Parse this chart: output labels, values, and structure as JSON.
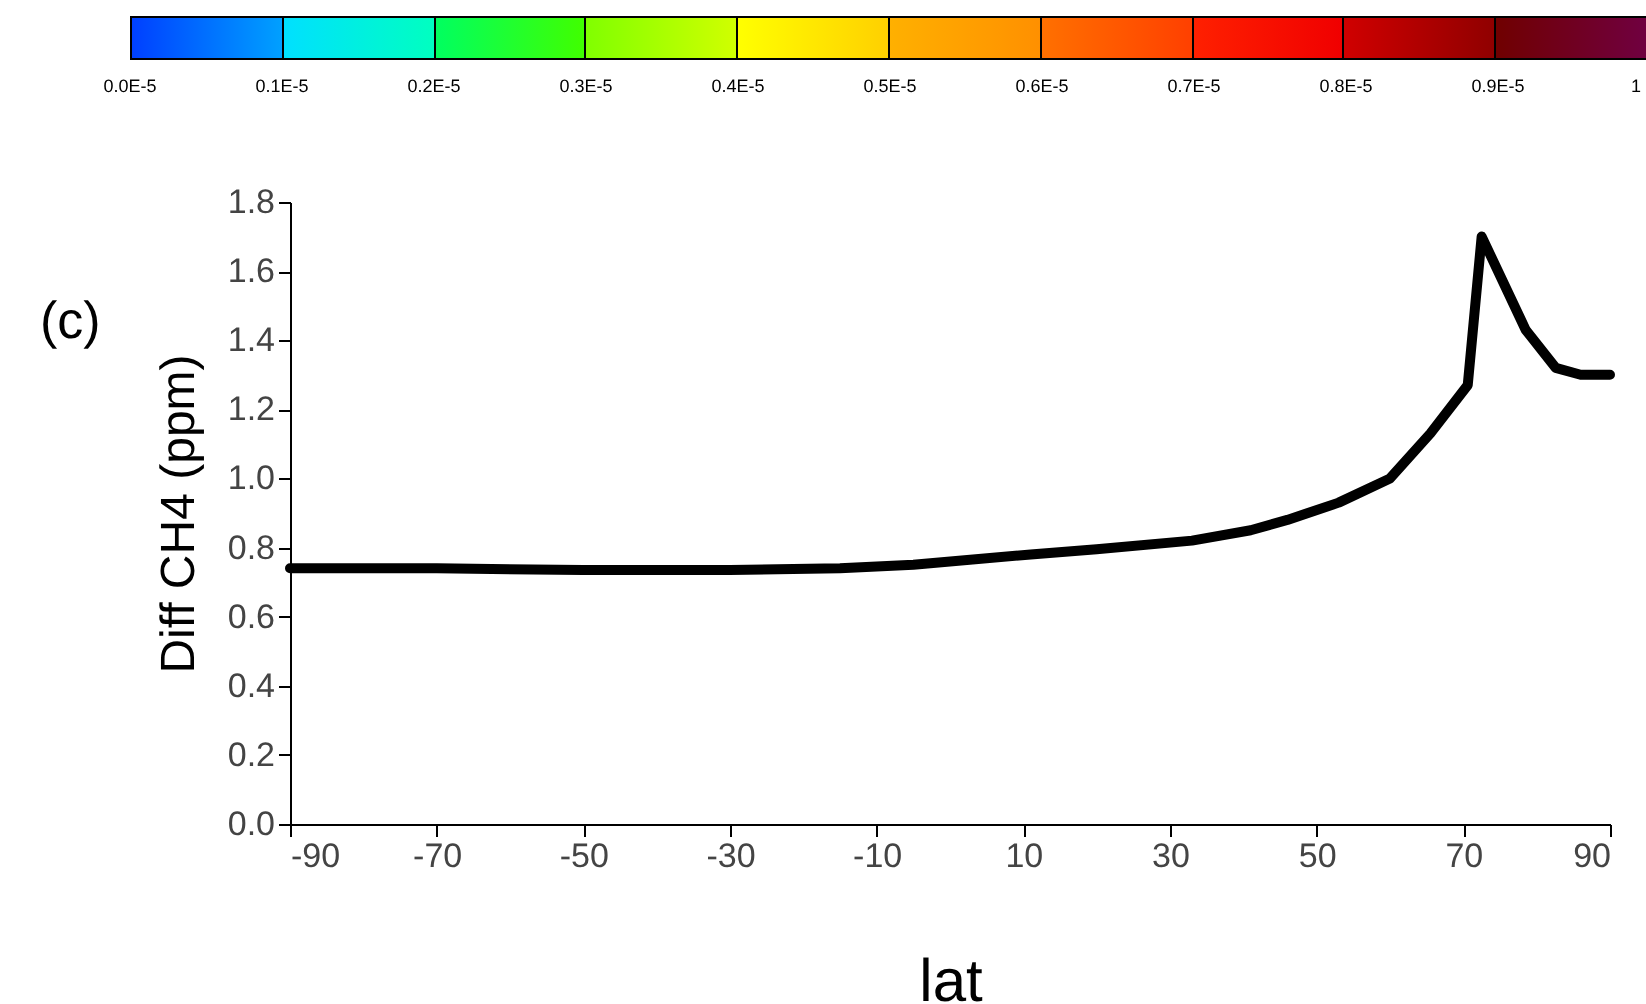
{
  "chart_data": {
    "type": "line",
    "xlabel": "lat",
    "ylabel": "Diff  CH4 (ppm)",
    "annotations": [
      "(c)",
      "0.0E-5",
      "0.1E-5",
      "0.2E-5",
      "0.3E-5",
      "0.4E-5",
      "0.5E-5",
      "0.6E-5",
      "0.7E-5",
      "0.8E-5",
      "0.9E-5",
      "1"
    ],
    "series": [
      {
        "color": "#000000",
        "x": [
          -90,
          -70,
          -50,
          -40,
          -30,
          -15,
          -5,
          11,
          20,
          33,
          41,
          46,
          53,
          60,
          65.5,
          70.6,
          72.5,
          78.5,
          82.6,
          86,
          90
        ],
        "values": [
          0.74,
          0.74,
          0.735,
          0.735,
          0.735,
          0.74,
          0.75,
          0.78,
          0.795,
          0.82,
          0.85,
          0.88,
          0.93,
          1.0,
          1.13,
          1.27,
          1.7,
          1.43,
          1.32,
          1.3,
          1.3
        ]
      }
    ],
    "xlim": [
      -90,
      90
    ],
    "xticks": [
      -90,
      -70,
      -50,
      -30,
      -10,
      10,
      30,
      50,
      70,
      90
    ],
    "ylim": [
      0,
      1.8
    ],
    "yticks": [
      {
        "value": 0,
        "label": "0.0"
      },
      0.2,
      0.4,
      0.6,
      0.8,
      {
        "value": 1,
        "label": "1.0"
      },
      1.2,
      1.4,
      1.6,
      1.8
    ],
    "grid": false,
    "legend": false,
    "line_style": "solid",
    "marker": "none"
  }
}
